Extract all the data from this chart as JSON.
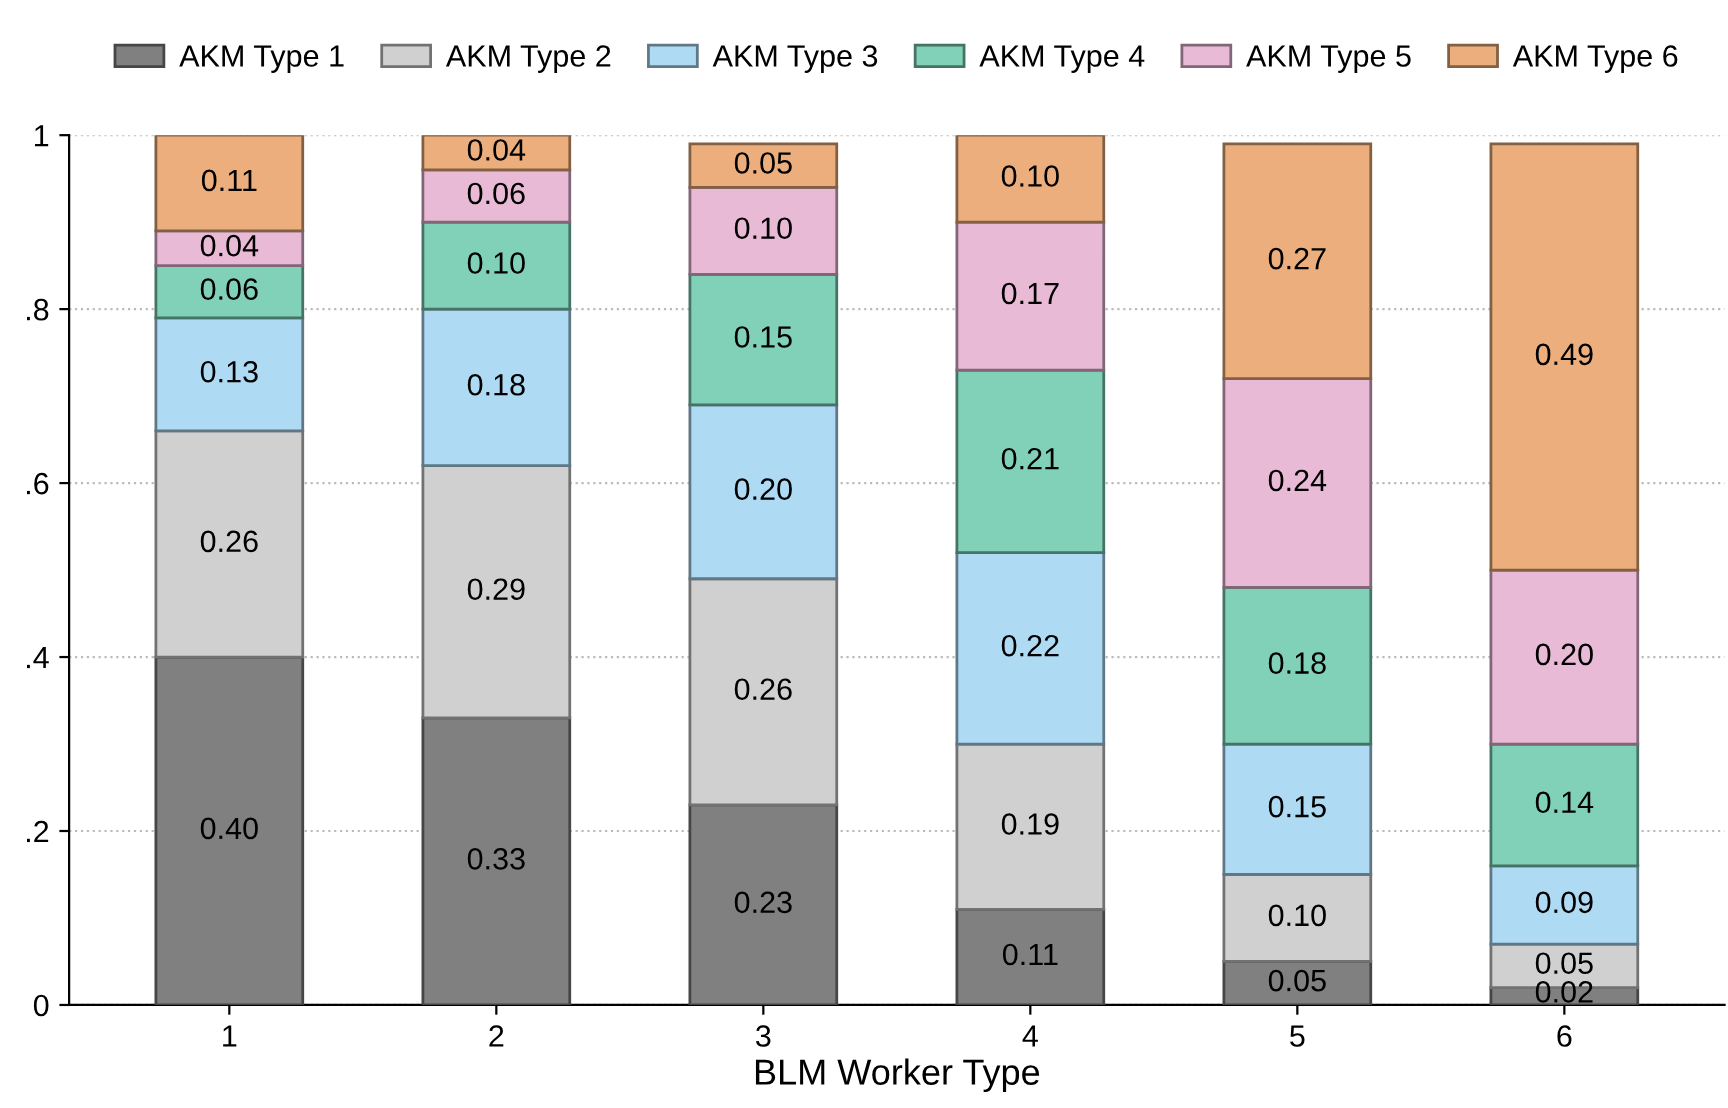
{
  "chart_data": {
    "type": "bar",
    "stacked": true,
    "xlabel": "BLM Worker Type",
    "categories": [
      "1",
      "2",
      "3",
      "4",
      "5",
      "6"
    ],
    "series": [
      {
        "name": "AKM Type 1",
        "color": "#808080",
        "values": [
          0.4,
          0.33,
          0.23,
          0.11,
          0.05,
          0.02
        ],
        "value_labels": [
          "0.40",
          "0.33",
          "0.23",
          "0.11",
          "0.05",
          "0.02"
        ]
      },
      {
        "name": "AKM Type 2",
        "color": "#d0d0d0",
        "values": [
          0.26,
          0.29,
          0.26,
          0.19,
          0.1,
          0.05
        ],
        "value_labels": [
          "0.26",
          "0.29",
          "0.26",
          "0.19",
          "0.10",
          "0.05"
        ]
      },
      {
        "name": "AKM Type 3",
        "color": "#aedaf3",
        "values": [
          0.13,
          0.18,
          0.2,
          0.22,
          0.15,
          0.09
        ],
        "value_labels": [
          "0.13",
          "0.18",
          "0.20",
          "0.22",
          "0.15",
          "0.09"
        ]
      },
      {
        "name": "AKM Type 4",
        "color": "#80d1b8",
        "values": [
          0.06,
          0.1,
          0.15,
          0.21,
          0.18,
          0.14
        ],
        "value_labels": [
          "0.06",
          "0.10",
          "0.15",
          "0.21",
          "0.18",
          "0.14"
        ]
      },
      {
        "name": "AKM Type 5",
        "color": "#e8bad6",
        "values": [
          0.04,
          0.06,
          0.1,
          0.17,
          0.24,
          0.2
        ],
        "value_labels": [
          "0.04",
          "0.06",
          "0.10",
          "0.17",
          "0.24",
          "0.20"
        ]
      },
      {
        "name": "AKM Type 6",
        "color": "#ebae7c",
        "values": [
          0.11,
          0.04,
          0.05,
          0.1,
          0.27,
          0.49
        ],
        "value_labels": [
          "0.11",
          "0.04",
          "0.05",
          "0.10",
          "0.27",
          "0.49"
        ]
      }
    ],
    "ylim": [
      0,
      1
    ],
    "yticks": [
      0,
      {
        "value": 0.2,
        "label": ".2"
      },
      {
        "value": 0.4,
        "label": ".4"
      },
      {
        "value": 0.6,
        "label": ".6"
      },
      {
        "value": 0.8,
        "label": ".8"
      },
      1
    ],
    "grid": "y",
    "legend": "top"
  }
}
